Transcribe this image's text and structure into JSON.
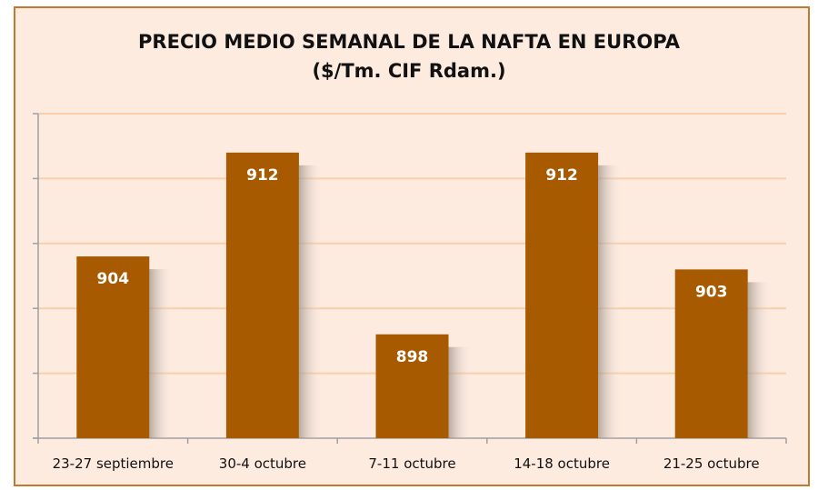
{
  "chart_data": {
    "type": "bar",
    "title": "PRECIO  MEDIO SEMANAL DE LA NAFTA EN EUROPA",
    "subtitle": "($/Tm. CIF Rdam.)",
    "categories": [
      "23-27 septiembre",
      "30-4 octubre",
      "7-11 octubre",
      "14-18 octubre",
      "21-25 octubre"
    ],
    "values": [
      904,
      912,
      898,
      912,
      903
    ],
    "data_labels": [
      "904",
      "912",
      "898",
      "912",
      "903"
    ],
    "xlabel": "",
    "ylabel": "",
    "ylim": [
      890,
      915
    ],
    "yticks": [
      890,
      895,
      900,
      905,
      910,
      915
    ],
    "grid": true,
    "colors": {
      "bar": "#a85a00",
      "grid": "#f8cfa8",
      "background": "#fdebe0",
      "frame": "#c07a30",
      "axis": "#a0a0a0"
    }
  }
}
